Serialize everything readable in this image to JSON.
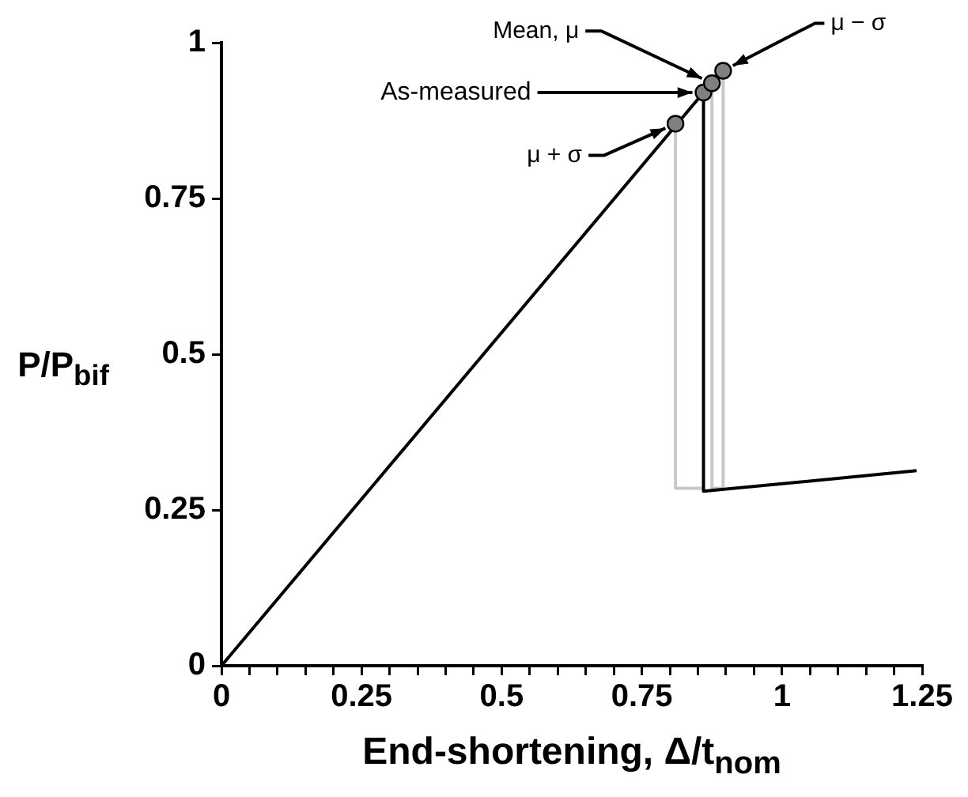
{
  "chart_data": {
    "type": "line",
    "xlabel": "End-shortening, Δ/t$_{nom}$",
    "ylabel": "P/P$_{bif}$",
    "xlim": [
      0,
      1.25
    ],
    "xticks": [
      0,
      {
        "value": 0.05,
        "label": null
      },
      {
        "value": 0.1,
        "label": null
      },
      {
        "value": 0.15,
        "label": null
      },
      {
        "value": 0.2,
        "label": null
      },
      0.25,
      {
        "value": 0.3,
        "label": null
      },
      {
        "value": 0.35,
        "label": null
      },
      {
        "value": 0.4,
        "label": null
      },
      {
        "value": 0.45,
        "label": null
      },
      0.5,
      {
        "value": 0.55,
        "label": null
      },
      {
        "value": 0.6,
        "label": null
      },
      {
        "value": 0.65,
        "label": null
      },
      {
        "value": 0.7,
        "label": null
      },
      0.75,
      {
        "value": 0.8,
        "label": null
      },
      {
        "value": 0.85,
        "label": null
      },
      {
        "value": 0.9,
        "label": null
      },
      {
        "value": 0.95,
        "label": null
      },
      1,
      {
        "value": 1.05,
        "label": null
      },
      {
        "value": 1.1,
        "label": null
      },
      {
        "value": 1.15,
        "label": null
      },
      {
        "value": 1.2,
        "label": null
      },
      1.25
    ],
    "ylim": [
      0,
      1
    ],
    "yticks": [
      0,
      0.25,
      0.5,
      0.75,
      1
    ],
    "grid": false,
    "legend": false,
    "marker": "none",
    "line_style": "solid",
    "series": [
      {
        "color": "#c8c8c8",
        "x": [
          0.81,
          0.81,
          0.86,
          0.87,
          0.875,
          0.875,
          0.885,
          0.895,
          0.895,
          0.875
        ],
        "values": [
          0.87,
          0.285,
          0.285,
          null,
          0.935,
          0.285,
          null,
          0.955,
          0.285,
          0.285
        ]
      },
      {
        "color": "#000000",
        "x": [
          0,
          0.86,
          0.86,
          1.24
        ],
        "values": [
          0,
          0.92,
          0.28,
          0.313
        ]
      },
      {
        "type": "scatter",
        "marker": "circle",
        "color": "#808080",
        "x": [
          0.81,
          0.86,
          0.875,
          0.895
        ],
        "values": [
          0.87,
          0.92,
          0.935,
          0.955
        ]
      }
    ],
    "annotations": [
      {
        "text": "Mean, μ",
        "x": 0.875,
        "y": 0.935
      },
      {
        "text": "As-measured",
        "x": 0.86,
        "y": 0.92
      },
      {
        "text": "μ + σ",
        "x": 0.81,
        "y": 0.87
      },
      {
        "text": "μ − σ",
        "x": 0.895,
        "y": 0.955
      }
    ]
  }
}
